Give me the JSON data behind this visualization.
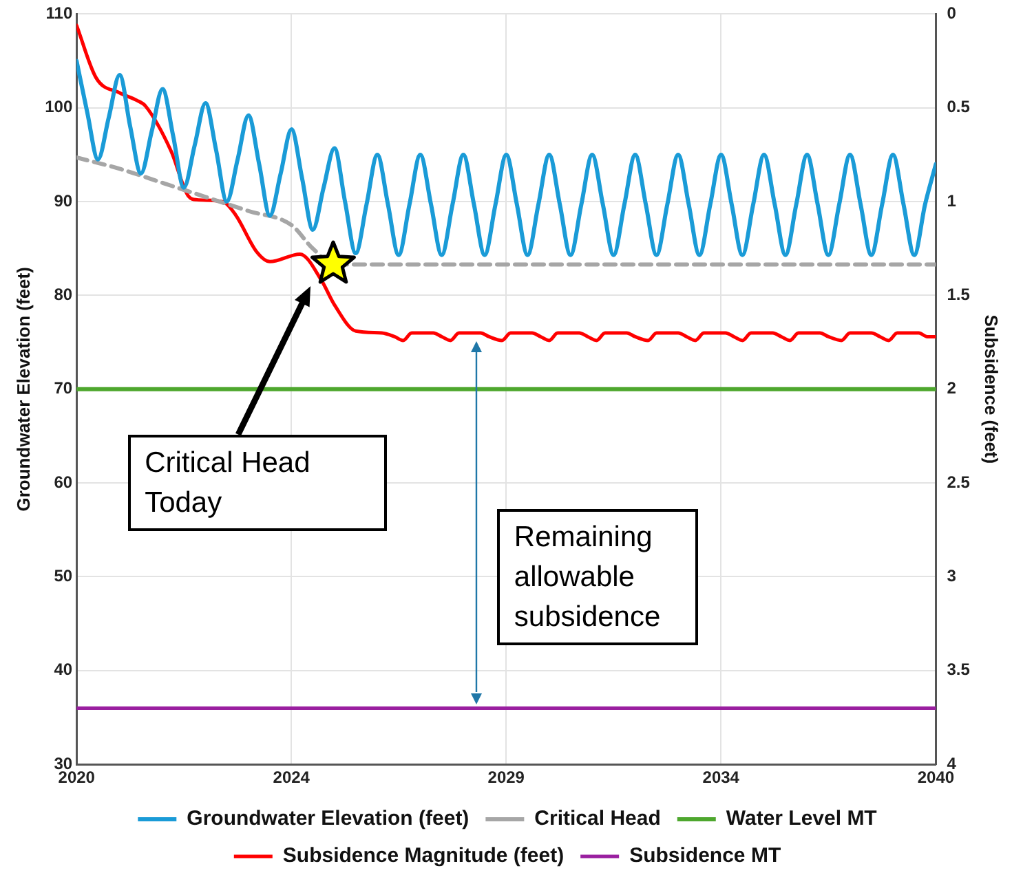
{
  "chart_data": {
    "type": "line",
    "ylabel": "Groundwater Elevation (feet)",
    "y2label": "Subsidence (feet)",
    "xlim": [
      "2020",
      "2040"
    ],
    "xticks": [
      {
        "value": "2020",
        "label": "2020"
      },
      {
        "value": "2024-12-31",
        "label": "2024"
      },
      {
        "value": "2029-12-31",
        "label": "2029"
      },
      {
        "value": "2034-12-31",
        "label": "2034"
      },
      {
        "value": "2040",
        "label": "2040"
      }
    ],
    "ylim": [
      30,
      110
    ],
    "yticks": [
      30,
      40,
      50,
      60,
      70,
      80,
      90,
      100,
      110
    ],
    "y2lim": [
      4,
      0
    ],
    "y2ticks": [
      0,
      0.5,
      1,
      1.5,
      2,
      2.5,
      3,
      3.5,
      4
    ],
    "grid": true,
    "legend": "bottom",
    "marker": "none",
    "series": [
      {
        "name": "Groundwater Elevation (feet)",
        "color": "#1a9bd7",
        "x": [
          "2020-01",
          "2020-04",
          "2020-07",
          "2020-10",
          "2021-01",
          "2021-04",
          "2021-07",
          "2021-10",
          "2022-01",
          "2022-04",
          "2022-07",
          "2022-10",
          "2023-01",
          "2023-04",
          "2023-07",
          "2023-10",
          "2024-01",
          "2024-04",
          "2024-07",
          "2024-10",
          "2025-01",
          "2025-04",
          "2025-07",
          "2025-10",
          "2026-01",
          "2026-04",
          "2026-07",
          "2026-10",
          "2027-01",
          "2027-04",
          "2027-07",
          "2027-10",
          "2028-01",
          "2028-04",
          "2028-07",
          "2028-10",
          "2029-01",
          "2029-04",
          "2029-07",
          "2029-10",
          "2030-01",
          "2030-04",
          "2030-07",
          "2030-10",
          "2031-01",
          "2031-04",
          "2031-07",
          "2031-10",
          "2032-01",
          "2032-04",
          "2032-07",
          "2032-10",
          "2033-01",
          "2033-04",
          "2033-07",
          "2033-10",
          "2034-01",
          "2034-04",
          "2034-07",
          "2034-10",
          "2035-01",
          "2035-04",
          "2035-07",
          "2035-10",
          "2036-01",
          "2036-04",
          "2036-07",
          "2036-10",
          "2037-01",
          "2037-04",
          "2037-07",
          "2037-10",
          "2038-01",
          "2038-04",
          "2038-07",
          "2038-10",
          "2039-01",
          "2039-04",
          "2039-07",
          "2039-10",
          "2040-01"
        ],
        "values": [
          105,
          99.5,
          94.5,
          99,
          103.5,
          98,
          93,
          97.5,
          102,
          97,
          91.5,
          96,
          100.5,
          95.5,
          90,
          94.5,
          99.2,
          94,
          88.5,
          93,
          97.7,
          92.5,
          87,
          91.5,
          95.7,
          90,
          84.5,
          89.7,
          95,
          89.7,
          84.3,
          89.7,
          95,
          89.7,
          84.3,
          89.7,
          95,
          89.7,
          84.3,
          89.7,
          95,
          89.7,
          84.3,
          89.7,
          95,
          89.7,
          84.3,
          89.7,
          95,
          89.7,
          84.3,
          89.7,
          95,
          89.7,
          84.3,
          89.7,
          95,
          89.7,
          84.3,
          89.7,
          95,
          89.7,
          84.3,
          89.7,
          95,
          89.7,
          84.3,
          89.7,
          95,
          89.7,
          84.3,
          89.7,
          95,
          89.7,
          84.3,
          89.7,
          95,
          89.7,
          84.3,
          89.7,
          94
        ]
      },
      {
        "name": "Critical Head",
        "color": "#a6a6a6",
        "line_style": "dashed",
        "x": [
          "2020-01",
          "2021-01",
          "2022-01",
          "2023-01",
          "2024-01",
          "2025-01",
          "2025-07",
          "2026-01",
          "2040-01"
        ],
        "values": [
          94.7,
          93.5,
          92,
          90.5,
          89,
          87.5,
          85,
          83.3,
          83.3
        ]
      },
      {
        "name": "Water Level MT",
        "color": "#4ea72e",
        "x": [
          "2020-01",
          "2040-01"
        ],
        "values": [
          70,
          70
        ]
      },
      {
        "name": "Subsidence Magnitude (feet)",
        "color": "#ff0000",
        "axis": "y2",
        "x": [
          "2020-01",
          "2020-06-15",
          "2021-01",
          "2021-05-27",
          "2021-08-08",
          "2022-03-14",
          "2022-08-08",
          "2022-10-20",
          "2023-05-27",
          "2023-09-13",
          "2024-03-14",
          "2024-07-02",
          "2025-03-14",
          "2025-09-13",
          "2026-01",
          "2026-07-02",
          "2027-02-07",
          "2027-05-27",
          "2027-08-08",
          "2027-10-20",
          "2028-04-20",
          "2028-07-02",
          "2028-09-13",
          "2028-11-25",
          "2029-05-27",
          "2029-08-08",
          "2029-11-25",
          "2030-02-07",
          "2030-08-08",
          "2030-10-20",
          "2031-01",
          "2031-03-14",
          "2031-09-13",
          "2031-11-25",
          "2032-02-07",
          "2032-04-20",
          "2032-10-20",
          "2033-01",
          "2033-04-20",
          "2033-07-02",
          "2034-01",
          "2034-03-14",
          "2034-05-27",
          "2034-08-08",
          "2035-02-07",
          "2035-04-20",
          "2035-07-02",
          "2035-09-13",
          "2036-03-14",
          "2036-05-27",
          "2036-08-08",
          "2036-10-20",
          "2037-04-20",
          "2037-07-02",
          "2037-10-20",
          "2038-01",
          "2038-07-02",
          "2038-09-13",
          "2038-11-25",
          "2039-02-07",
          "2039-08-08",
          "2039-10-20",
          "2040-01"
        ],
        "values": [
          0.06,
          0.34,
          0.42,
          0.46,
          0.49,
          0.73,
          0.97,
          0.99,
          1,
          1.07,
          1.27,
          1.32,
          1.28,
          1.42,
          1.55,
          1.69,
          1.7,
          1.72,
          1.74,
          1.7,
          1.7,
          1.72,
          1.74,
          1.7,
          1.7,
          1.72,
          1.74,
          1.7,
          1.7,
          1.72,
          1.74,
          1.7,
          1.7,
          1.72,
          1.74,
          1.7,
          1.7,
          1.72,
          1.74,
          1.7,
          1.7,
          1.72,
          1.74,
          1.7,
          1.7,
          1.72,
          1.74,
          1.7,
          1.7,
          1.72,
          1.74,
          1.7,
          1.7,
          1.72,
          1.74,
          1.7,
          1.7,
          1.72,
          1.74,
          1.7,
          1.7,
          1.72,
          1.72
        ]
      },
      {
        "name": "Subsidence MT",
        "color": "#9a1fa0",
        "axis": "y2",
        "x": [
          "2020-01",
          "2040-01"
        ],
        "values": [
          3.7,
          3.7
        ]
      }
    ],
    "annotations": [
      "Critical Head Today",
      "Remaining allowable subsidence"
    ]
  }
}
